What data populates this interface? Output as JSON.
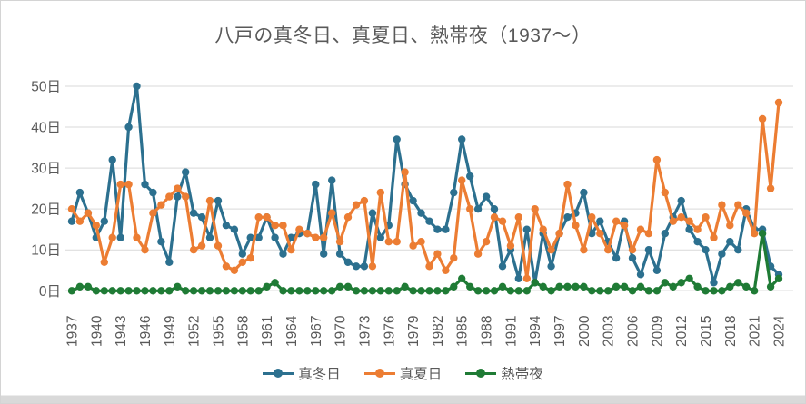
{
  "title": "八戸の真冬日、真夏日、熱帯夜（1937～）",
  "legend": {
    "items": [
      {
        "label": "真冬日",
        "color": "#2c708f"
      },
      {
        "label": "真夏日",
        "color": "#ec7d33"
      },
      {
        "label": "熱帯夜",
        "color": "#1f7b35"
      }
    ]
  },
  "colors": {
    "title_text": "#595959",
    "axis_text": "#595959",
    "gridline": "#d9d9d9",
    "axis_line": "#bfbfbf",
    "background": "#ffffff",
    "bottom_bar": "#d9d9d9"
  },
  "chart_data": {
    "type": "line",
    "title": "八戸の真冬日、真夏日、熱帯夜（1937～）",
    "xlabel": "",
    "ylabel": "",
    "x_start": 1937,
    "x_end": 2024,
    "x_tick_interval": 3,
    "x_tick_labels": [
      "1937",
      "1940",
      "1943",
      "1946",
      "1949",
      "1952",
      "1955",
      "1958",
      "1961",
      "1964",
      "1967",
      "1970",
      "1973",
      "1976",
      "1979",
      "1982",
      "1985",
      "1988",
      "1991",
      "1994",
      "1997",
      "2000",
      "2003",
      "2006",
      "2009",
      "2012",
      "2015",
      "2018",
      "2021",
      "2024"
    ],
    "ylim": [
      0,
      50
    ],
    "yticks": [
      0,
      10,
      20,
      30,
      40,
      50
    ],
    "ytick_suffix": "日",
    "grid": true,
    "legend_position": "bottom",
    "series": [
      {
        "id": "midwinter-days",
        "name": "真冬日",
        "color": "#2c708f",
        "values": [
          17,
          24,
          19,
          13,
          17,
          32,
          13,
          40,
          50,
          26,
          24,
          12,
          7,
          23,
          29,
          19,
          18,
          13,
          22,
          16,
          15,
          9,
          13,
          13,
          18,
          13,
          9,
          13,
          14,
          14,
          26,
          9,
          27,
          9,
          7,
          6,
          6,
          19,
          13,
          16,
          37,
          26,
          22,
          19,
          17,
          15,
          15,
          24,
          37,
          28,
          20,
          23,
          20,
          6,
          10,
          3,
          15,
          2,
          14,
          6,
          14,
          18,
          19,
          24,
          14,
          17,
          12,
          8,
          17,
          8,
          4,
          10,
          5,
          14,
          18,
          22,
          15,
          12,
          10,
          2,
          9,
          12,
          10,
          20,
          15,
          15,
          6,
          4
        ]
      },
      {
        "id": "midsummer-days",
        "name": "真夏日",
        "color": "#ec7d33",
        "values": [
          20,
          17,
          19,
          16,
          7,
          13,
          26,
          26,
          13,
          10,
          19,
          21,
          23,
          25,
          23,
          10,
          11,
          22,
          11,
          6,
          5,
          7,
          8,
          18,
          18,
          16,
          16,
          10,
          15,
          14,
          13,
          13,
          19,
          12,
          18,
          21,
          22,
          6,
          24,
          12,
          12,
          29,
          11,
          12,
          6,
          9,
          5,
          8,
          27,
          20,
          9,
          12,
          18,
          17,
          11,
          18,
          3,
          20,
          15,
          10,
          14,
          26,
          16,
          10,
          18,
          14,
          10,
          17,
          16,
          10,
          15,
          14,
          32,
          24,
          17,
          18,
          17,
          15,
          18,
          13,
          21,
          16,
          21,
          19,
          14,
          42,
          25,
          46
        ]
      },
      {
        "id": "tropical-nights",
        "name": "熱帯夜",
        "color": "#1f7b35",
        "values": [
          0,
          1,
          1,
          0,
          0,
          0,
          0,
          0,
          0,
          0,
          0,
          0,
          0,
          1,
          0,
          0,
          0,
          0,
          0,
          0,
          0,
          0,
          0,
          0,
          1,
          2,
          0,
          0,
          0,
          0,
          0,
          0,
          0,
          1,
          1,
          0,
          0,
          0,
          0,
          0,
          0,
          1,
          0,
          0,
          0,
          0,
          0,
          1,
          3,
          1,
          0,
          0,
          0,
          1,
          0,
          0,
          0,
          2,
          1,
          0,
          1,
          1,
          1,
          1,
          0,
          0,
          0,
          1,
          1,
          0,
          1,
          0,
          0,
          2,
          1,
          2,
          3,
          1,
          0,
          0,
          0,
          1,
          2,
          1,
          0,
          14,
          1,
          3
        ]
      }
    ]
  }
}
